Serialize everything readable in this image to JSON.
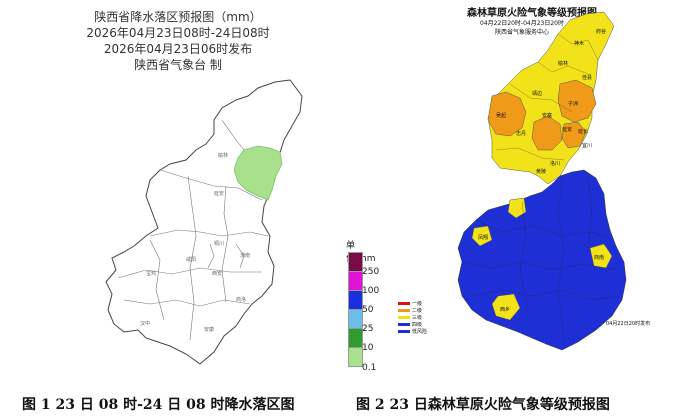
{
  "left_panel": {
    "title": "陕西省降水落区预报图（mm）",
    "period": "2026年04月23日08时-24日08时",
    "issued": "2026年04月23日06时发布",
    "issuer": "陕西省气象台  制",
    "legend": {
      "unit": "单位:mm",
      "levels": [
        {
          "label": "250",
          "color": "#7a0a4a"
        },
        {
          "label": "100",
          "color": "#e012d6"
        },
        {
          "label": "50",
          "color": "#1b2ee0"
        },
        {
          "label": "25",
          "color": "#69bfe8"
        },
        {
          "label": "10",
          "color": "#2e9c2e"
        },
        {
          "label": "0.1",
          "color": "#a8e08c"
        }
      ]
    },
    "rain_area_color": "#a8e08c",
    "map_labels": [
      "榆林",
      "延安",
      "铜川",
      "渭南",
      "咸阳",
      "西安",
      "宝鸡",
      "汉中",
      "安康",
      "商洛"
    ],
    "caption": "图 1 23 日 08 时-24 日 08 时降水落区图"
  },
  "right_panel": {
    "title": "森林草原火险气象等级预报图",
    "period": "04月22日20时-04月23日20时",
    "issuer": "陕西省气象服务中心",
    "issue_time": "04月22日20时发布",
    "colors": {
      "level1": "#e01010",
      "level2": "#f09a1a",
      "level3": "#f2e21a",
      "level4": "#1f2fd6"
    },
    "legend": [
      {
        "label": "一级",
        "color": "#e01010"
      },
      {
        "label": "二级",
        "color": "#f09a1a"
      },
      {
        "label": "三级",
        "color": "#f2e21a"
      },
      {
        "label": "四级",
        "color": "#1f2fd6"
      },
      {
        "label": "低风险",
        "color": "#1f2fd6"
      }
    ],
    "map_labels": [
      "府谷",
      "神木",
      "榆林",
      "佳县",
      "靖边",
      "子洲",
      "吴起",
      "志丹",
      "安塞",
      "延安",
      "延长",
      "宜川",
      "洛川",
      "黄陵",
      "凤翔",
      "西乡",
      "商南"
    ],
    "caption": "图 2 23 日森林草原火险气象等级预报图"
  }
}
